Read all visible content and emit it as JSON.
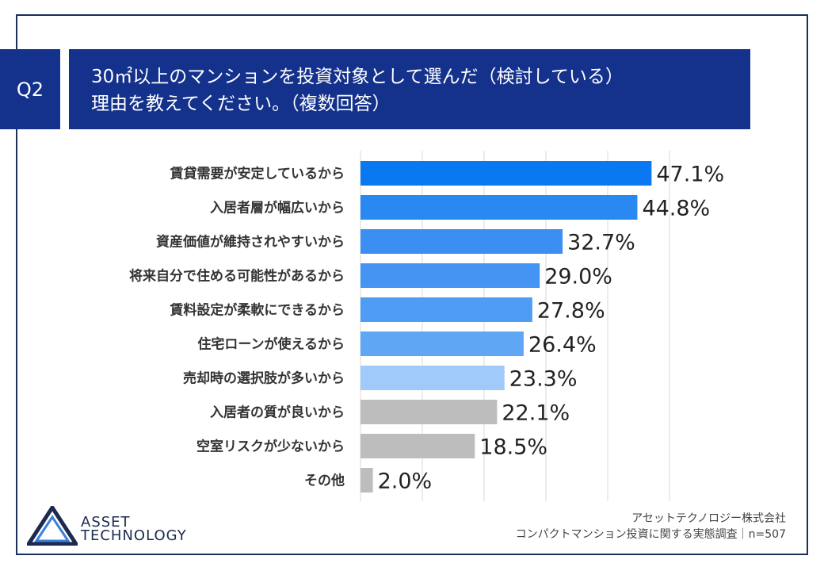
{
  "header": {
    "badge": "Q2",
    "title_line1": "30㎡以上のマンションを投資対象として選んだ（検討している）",
    "title_line2": "理由を教えてください。（複数回答）"
  },
  "footer": {
    "company": "アセットテクノロジー株式会社",
    "survey": "コンパクトマンション投資に関する実態調査｜n=507",
    "logo_line1": "ASSET",
    "logo_line2": "TECHNOLOGY"
  },
  "chart_data": {
    "type": "bar",
    "orientation": "horizontal",
    "categories": [
      "賃貸需要が安定しているから",
      "入居者層が幅広いから",
      "資産価値が維持されやすいから",
      "将来自分で住める可能性があるから",
      "賃料設定が柔軟にできるから",
      "住宅ローンが使えるから",
      "売却時の選択肢が多いから",
      "入居者の質が良いから",
      "空室リスクが少ないから",
      "その他"
    ],
    "values": [
      47.1,
      44.8,
      32.7,
      29.0,
      27.8,
      26.4,
      23.3,
      22.1,
      18.5,
      2.0
    ],
    "value_labels": [
      "47.1%",
      "44.8%",
      "32.7%",
      "29.0%",
      "27.8%",
      "26.4%",
      "23.3%",
      "22.1%",
      "18.5%",
      "2.0%"
    ],
    "xlim": [
      0,
      50
    ],
    "grid": true,
    "colors": [
      "#0a78f0",
      "#2a88f2",
      "#3b8ff2",
      "#4495f3",
      "#4f9cf4",
      "#5fa6f5",
      "#9fcaf9",
      "#bdbdbd",
      "#bdbdbd",
      "#bdbdbd"
    ]
  }
}
